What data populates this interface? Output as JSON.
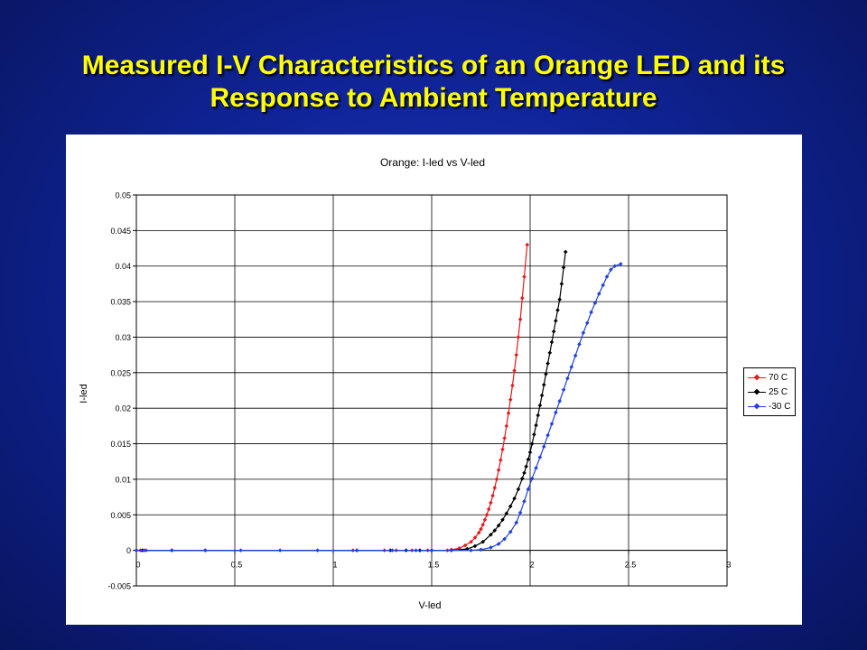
{
  "slide": {
    "title_line1": "Measured I-V Characteristics of an Orange LED and its",
    "title_line2": "Response to Ambient Temperature",
    "title_color": "#ffff00",
    "background_color": "#0f2396"
  },
  "chart_data": {
    "type": "scatter",
    "title": "Orange:  I-led vs V-led",
    "xlabel": "V-led",
    "ylabel": "I-led",
    "xlim": [
      0,
      3
    ],
    "ylim": [
      -0.005,
      0.05
    ],
    "xticks": [
      "0",
      "0.5",
      "1",
      "1.5",
      "2",
      "2.5",
      "3"
    ],
    "yticks": [
      "-0.005",
      "0",
      "0.005",
      "0.01",
      "0.015",
      "0.02",
      "0.025",
      "0.03",
      "0.035",
      "0.04",
      "0.045",
      "0.05"
    ],
    "grid": true,
    "legend_position": "right",
    "series": [
      {
        "name": "70 C",
        "color": "#e41a1c",
        "x": [
          0,
          0.02,
          0.05,
          0.18,
          1.1,
          1.26,
          1.32,
          1.4,
          1.48,
          1.58,
          1.6,
          1.64,
          1.67,
          1.7,
          1.72,
          1.74,
          1.75,
          1.76,
          1.77,
          1.78,
          1.79,
          1.8,
          1.81,
          1.82,
          1.83,
          1.84,
          1.85,
          1.86,
          1.87,
          1.88,
          1.89,
          1.9,
          1.91,
          1.92,
          1.93,
          1.94,
          1.95,
          1.96,
          1.97,
          1.985
        ],
        "y": [
          0,
          0,
          0,
          0,
          0,
          0,
          0,
          0,
          0,
          0,
          0.0001,
          0.0003,
          0.0007,
          0.0012,
          0.0018,
          0.0025,
          0.003,
          0.0036,
          0.0043,
          0.005,
          0.0058,
          0.0067,
          0.0077,
          0.0088,
          0.01,
          0.0113,
          0.0127,
          0.0142,
          0.0158,
          0.0175,
          0.0193,
          0.0212,
          0.0232,
          0.0253,
          0.0275,
          0.03,
          0.0325,
          0.0355,
          0.0385,
          0.043
        ]
      },
      {
        "name": "25 C",
        "color": "#000000",
        "x": [
          0,
          0.03,
          0.18,
          0.35,
          1.12,
          1.29,
          1.37,
          1.44,
          1.5,
          1.6,
          1.68,
          1.72,
          1.76,
          1.8,
          1.82,
          1.84,
          1.86,
          1.88,
          1.9,
          1.92,
          1.94,
          1.96,
          1.97,
          1.98,
          1.99,
          2.0,
          2.01,
          2.02,
          2.03,
          2.04,
          2.05,
          2.06,
          2.07,
          2.08,
          2.09,
          2.1,
          2.11,
          2.12,
          2.13,
          2.14,
          2.15,
          2.16,
          2.17,
          2.18
        ],
        "y": [
          0,
          0,
          0,
          0,
          0,
          0,
          0,
          0,
          0,
          0,
          0.0002,
          0.0006,
          0.0012,
          0.0022,
          0.0028,
          0.0035,
          0.0043,
          0.0052,
          0.0062,
          0.0073,
          0.0086,
          0.0101,
          0.0109,
          0.0118,
          0.0128,
          0.0138,
          0.015,
          0.0163,
          0.0176,
          0.019,
          0.0204,
          0.0218,
          0.0233,
          0.0248,
          0.0263,
          0.0278,
          0.0293,
          0.0308,
          0.0323,
          0.0338,
          0.0353,
          0.0375,
          0.0398,
          0.042
        ]
      },
      {
        "name": "-30 C",
        "color": "#1f3fe0",
        "x": [
          0,
          0.04,
          0.18,
          0.35,
          0.53,
          0.73,
          0.92,
          1.12,
          1.3,
          1.42,
          1.5,
          1.6,
          1.7,
          1.75,
          1.8,
          1.84,
          1.87,
          1.9,
          1.93,
          1.95,
          1.97,
          1.99,
          2.01,
          2.03,
          2.05,
          2.07,
          2.09,
          2.11,
          2.13,
          2.15,
          2.17,
          2.19,
          2.21,
          2.23,
          2.25,
          2.27,
          2.29,
          2.31,
          2.33,
          2.35,
          2.37,
          2.39,
          2.41,
          2.43,
          2.46
        ],
        "y": [
          0,
          0,
          0,
          0,
          0,
          0,
          0,
          0,
          0,
          0,
          0,
          0,
          0,
          0.0001,
          0.0004,
          0.0009,
          0.0016,
          0.0026,
          0.0039,
          0.0053,
          0.0069,
          0.0086,
          0.0101,
          0.0116,
          0.0131,
          0.0146,
          0.0162,
          0.0178,
          0.0194,
          0.021,
          0.0226,
          0.0242,
          0.0258,
          0.0274,
          0.029,
          0.0306,
          0.032,
          0.0335,
          0.0348,
          0.0361,
          0.0373,
          0.0385,
          0.0395,
          0.04,
          0.0403
        ]
      }
    ]
  }
}
